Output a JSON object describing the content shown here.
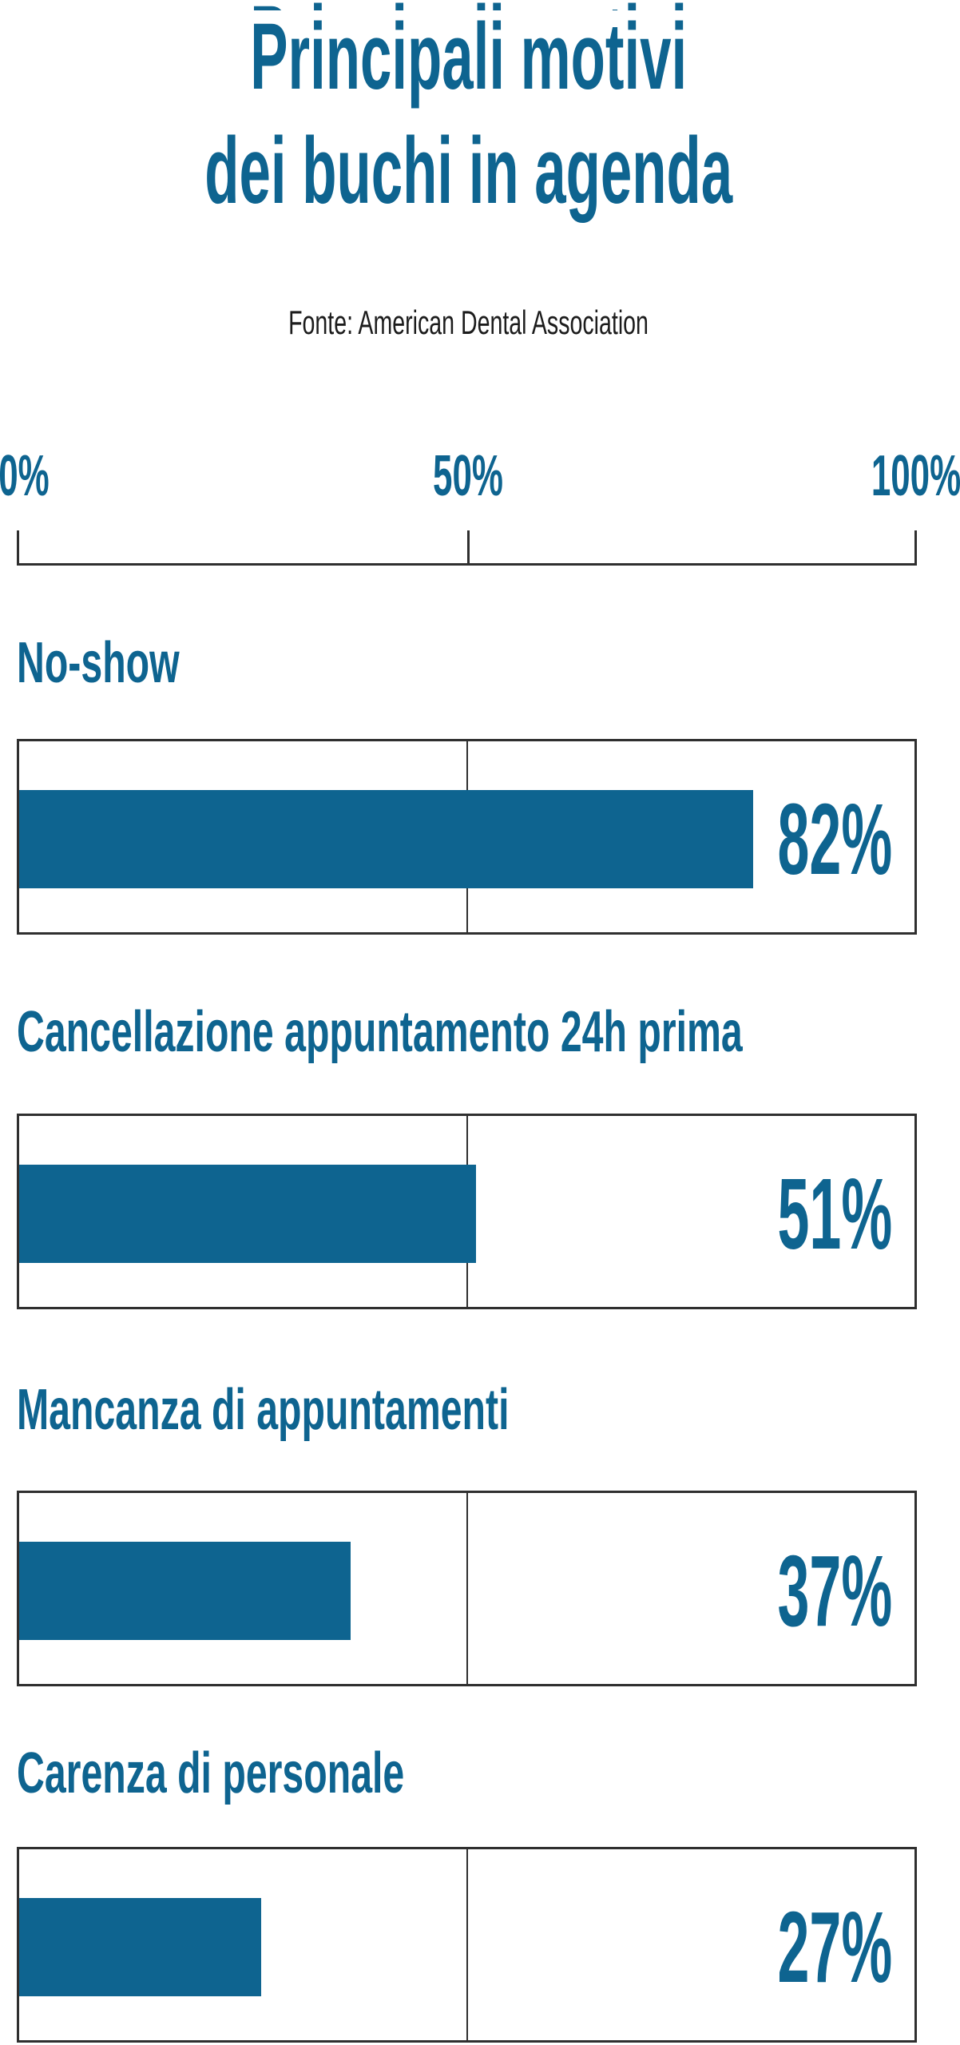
{
  "title": {
    "line1": "Principali motivi",
    "line2": "dei buchi in agenda"
  },
  "source_note": "Fonte: American Dental Association",
  "axis": {
    "tick_labels": [
      "0%",
      "50%",
      "100%"
    ]
  },
  "rows": [
    {
      "label": "No-show",
      "value": 82,
      "value_label": "82%"
    },
    {
      "label": "Cancellazione appuntamento 24h prima",
      "value": 51,
      "value_label": "51%"
    },
    {
      "label": "Mancanza di appuntamenti",
      "value": 37,
      "value_label": "37%"
    },
    {
      "label": "Carenza di personale",
      "value": 27,
      "value_label": "27%"
    }
  ],
  "colors": {
    "accent_blue": "#0e6490",
    "line_gray": "#2f2f2f",
    "source_text": "#1c1c1c"
  },
  "chart_data": {
    "type": "bar",
    "orientation": "horizontal",
    "title": "Principali motivi dei buchi in agenda",
    "subtitle": "Fonte: American Dental Association",
    "categories": [
      "No-show",
      "Cancellazione appuntamento 24h prima",
      "Mancanza di appuntamenti",
      "Carenza di personale"
    ],
    "values": [
      82,
      51,
      37,
      27
    ],
    "unit": "%",
    "xlabel": "",
    "ylabel": "",
    "xlim": [
      0,
      100
    ],
    "x_ticks": [
      0,
      50,
      100
    ],
    "x_tick_labels": [
      "0%",
      "50%",
      "100%"
    ],
    "bar_color": "#0e6490",
    "grid": "vertical gridline at 50% inside each row panel",
    "legend_position": "none",
    "data_labels": "percentage shown right-aligned inside each row panel"
  }
}
